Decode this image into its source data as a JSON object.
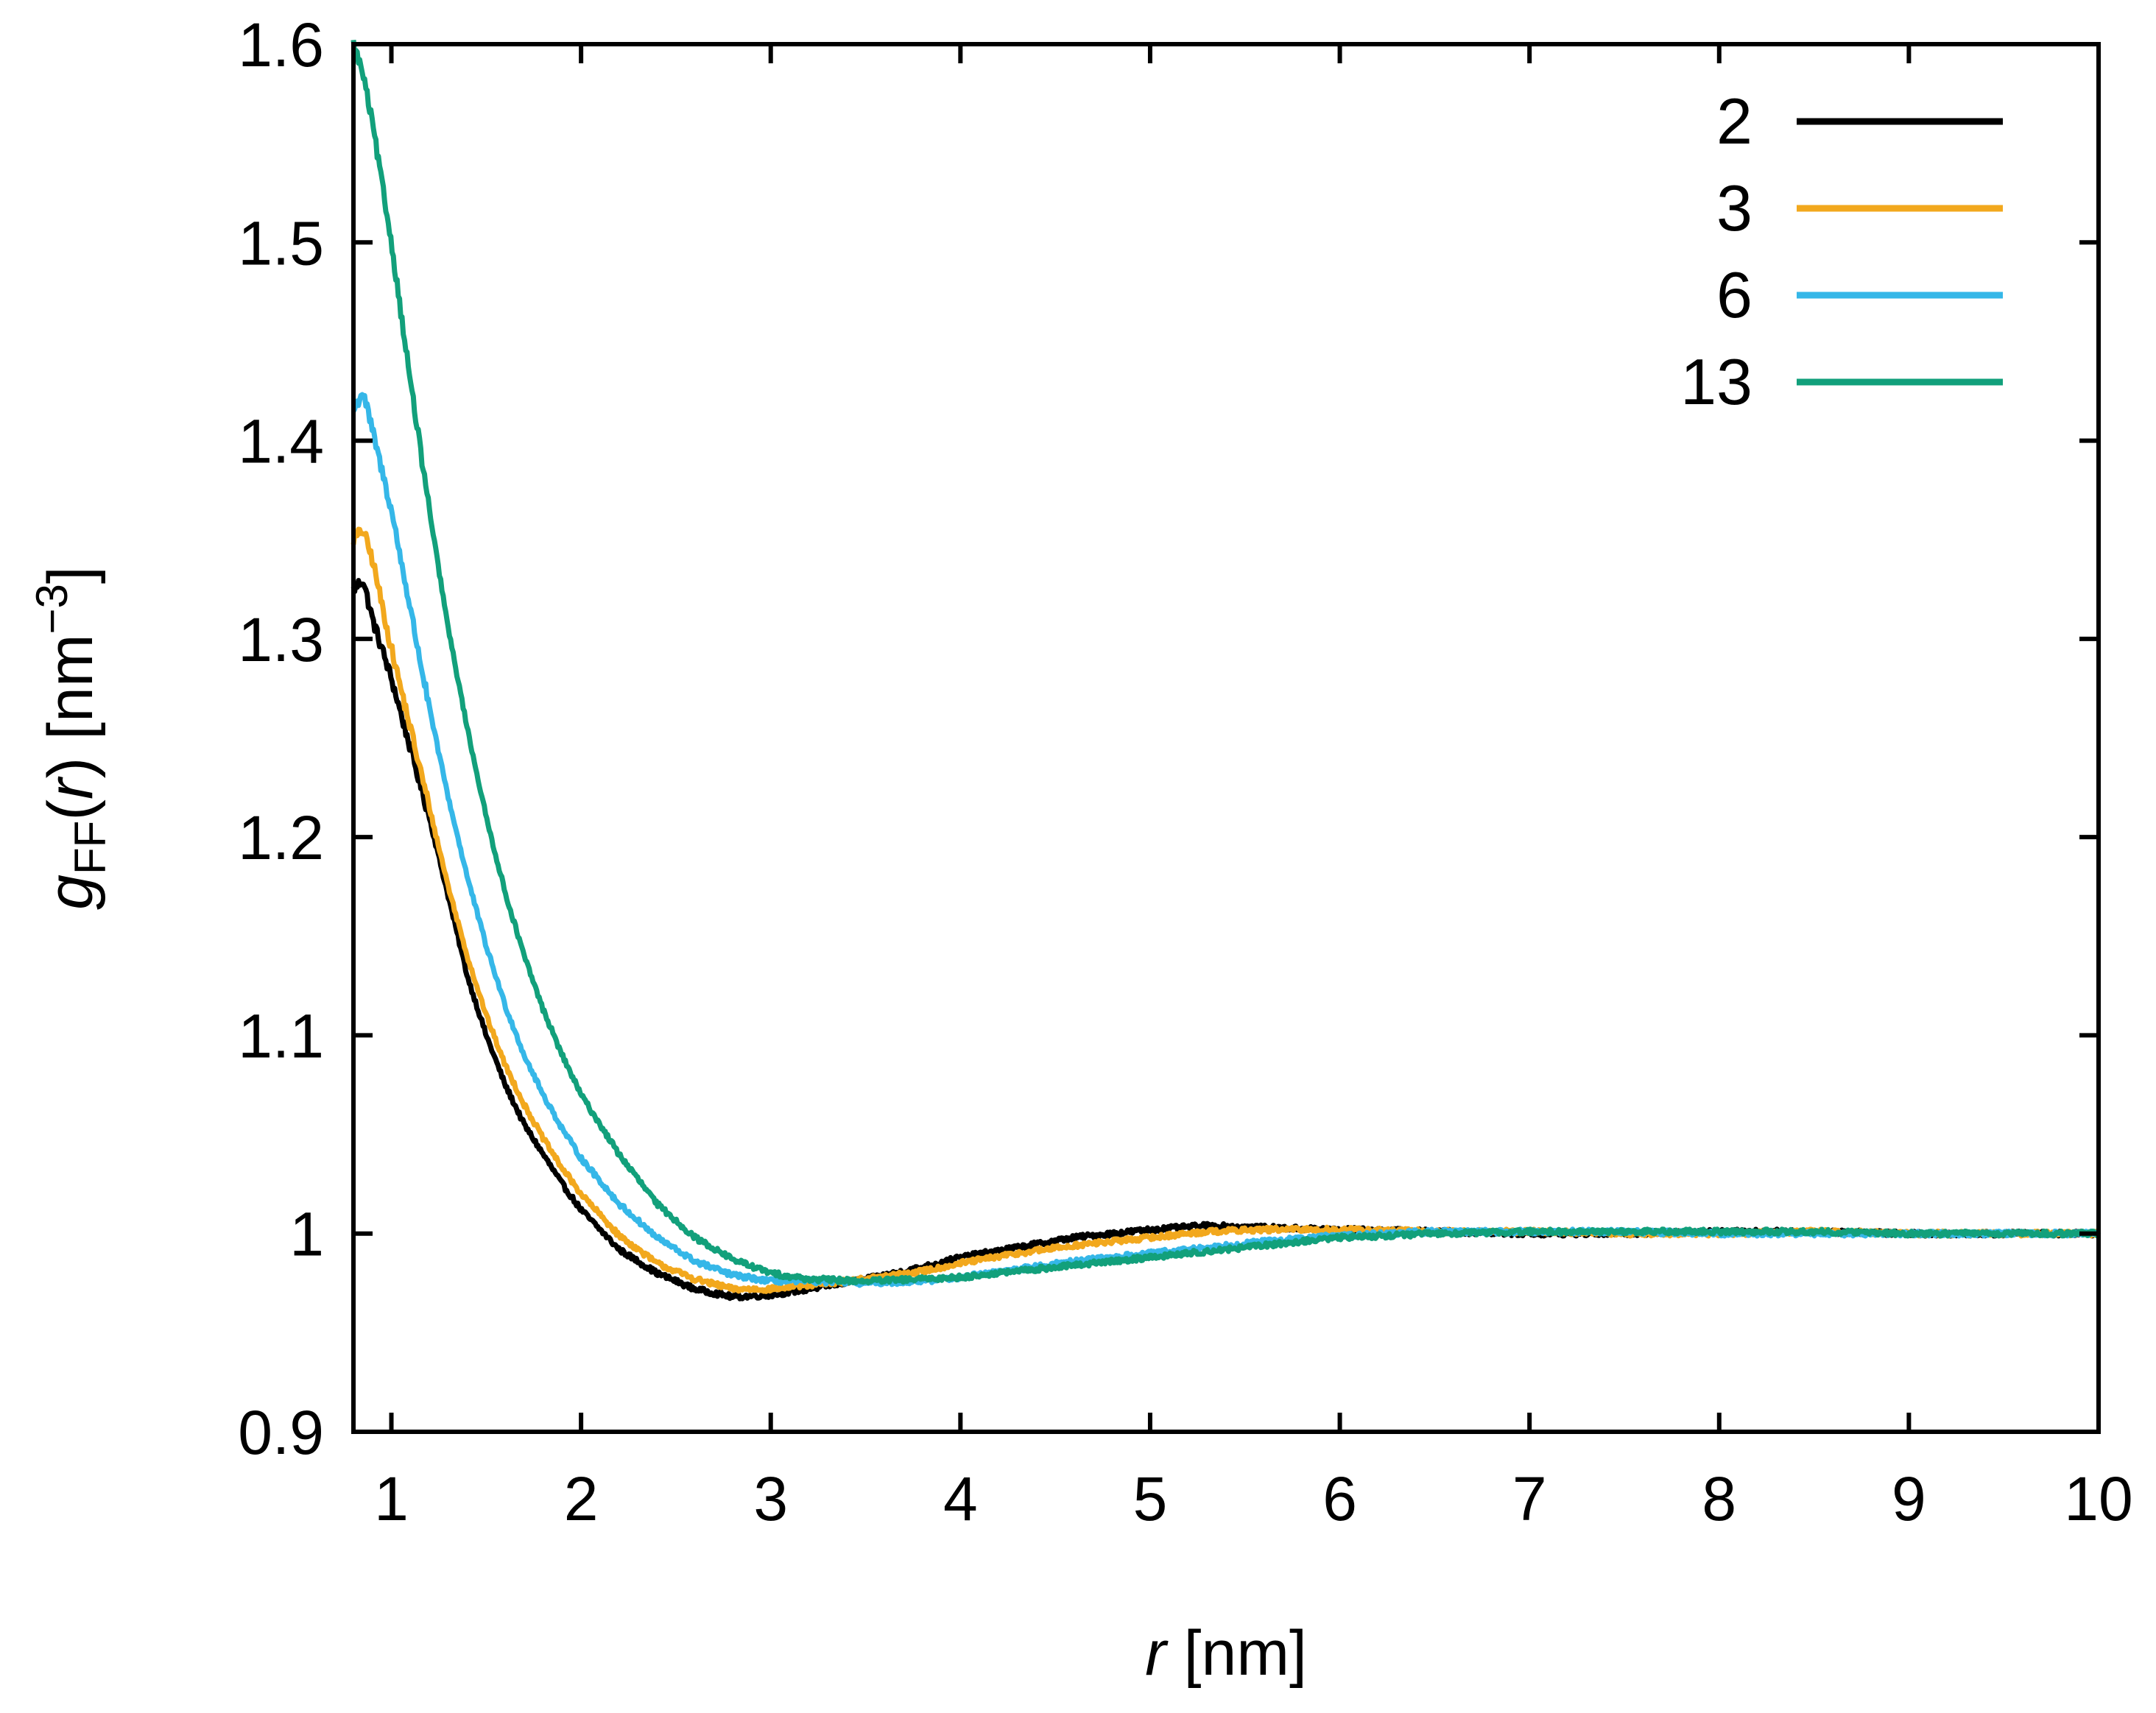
{
  "chart_data": {
    "type": "line",
    "title": "",
    "xlabel": {
      "italic": "r",
      "rest": " [nm]"
    },
    "ylabel": {
      "main": "g",
      "subscript": "FF",
      "open": "(",
      "var": "r",
      "close": ")",
      "unit_open": " [nm",
      "unit_sup": "−3",
      "unit_close": "]"
    },
    "xlim": [
      0.8,
      10
    ],
    "ylim": [
      0.9,
      1.6
    ],
    "x_ticks": [
      1,
      2,
      3,
      4,
      5,
      6,
      7,
      8,
      9,
      10
    ],
    "x_tick_labels": [
      "1",
      "2",
      "3",
      "4",
      "5",
      "6",
      "7",
      "8",
      "9",
      "10"
    ],
    "y_ticks": [
      0.9,
      1.0,
      1.1,
      1.2,
      1.3,
      1.4,
      1.5,
      1.6
    ],
    "y_tick_labels": [
      "0.9",
      "1",
      "1.1",
      "1.2",
      "1.3",
      "1.4",
      "1.5",
      "1.6"
    ],
    "grid": false,
    "legend_position": "top-right",
    "series": [
      {
        "name": "2",
        "color": "#000000",
        "x": [
          0.8,
          0.85,
          0.9,
          1.0,
          1.1,
          1.2,
          1.3,
          1.4,
          1.5,
          1.6,
          1.7,
          1.8,
          1.9,
          2.0,
          2.2,
          2.4,
          2.6,
          2.8,
          3.0,
          3.2,
          3.5,
          3.8,
          4.0,
          4.3,
          4.6,
          5.0,
          5.3,
          5.6,
          6.0,
          6.5,
          7.0,
          7.5,
          8.0,
          8.5,
          9.0,
          9.5,
          10.0
        ],
        "values": [
          1.325,
          1.33,
          1.31,
          1.28,
          1.245,
          1.21,
          1.17,
          1.13,
          1.1,
          1.075,
          1.055,
          1.04,
          1.025,
          1.012,
          0.992,
          0.98,
          0.972,
          0.968,
          0.969,
          0.972,
          0.977,
          0.983,
          0.988,
          0.993,
          0.998,
          1.002,
          1.004,
          1.003,
          1.002,
          1.001,
          1.0,
          1.0,
          1.001,
          1.001,
          1.0,
          1.0,
          1.0
        ]
      },
      {
        "name": "3",
        "color": "#f2a81d",
        "x": [
          0.8,
          0.85,
          0.9,
          1.0,
          1.1,
          1.2,
          1.3,
          1.4,
          1.5,
          1.6,
          1.7,
          1.8,
          1.9,
          2.0,
          2.2,
          2.4,
          2.6,
          2.8,
          3.0,
          3.2,
          3.5,
          3.8,
          4.0,
          4.3,
          4.6,
          5.0,
          5.3,
          5.6,
          6.0,
          6.5,
          7.0,
          7.5,
          8.0,
          8.5,
          9.0,
          9.5,
          10.0
        ],
        "values": [
          1.35,
          1.355,
          1.34,
          1.295,
          1.255,
          1.215,
          1.175,
          1.14,
          1.11,
          1.085,
          1.065,
          1.048,
          1.033,
          1.02,
          0.999,
          0.985,
          0.977,
          0.972,
          0.972,
          0.974,
          0.977,
          0.981,
          0.985,
          0.99,
          0.994,
          0.998,
          1.001,
          1.002,
          1.002,
          1.001,
          1.001,
          1.0,
          1.0,
          1.001,
          1.0,
          1.0,
          1.0
        ]
      },
      {
        "name": "6",
        "color": "#35b7e8",
        "x": [
          0.8,
          0.85,
          0.9,
          1.0,
          1.1,
          1.2,
          1.3,
          1.4,
          1.5,
          1.6,
          1.7,
          1.8,
          1.9,
          2.0,
          2.2,
          2.4,
          2.6,
          2.8,
          3.0,
          3.2,
          3.5,
          3.8,
          4.0,
          4.3,
          4.6,
          5.0,
          5.3,
          5.6,
          6.0,
          6.5,
          7.0,
          7.5,
          8.0,
          8.5,
          9.0,
          9.5,
          10.0
        ],
        "values": [
          1.415,
          1.425,
          1.405,
          1.365,
          1.315,
          1.265,
          1.22,
          1.18,
          1.145,
          1.115,
          1.09,
          1.07,
          1.053,
          1.038,
          1.015,
          0.998,
          0.986,
          0.979,
          0.976,
          0.976,
          0.975,
          0.976,
          0.978,
          0.982,
          0.986,
          0.99,
          0.993,
          0.996,
          0.999,
          1.001,
          1.001,
          1.001,
          1.0,
          1.0,
          1.0,
          1.0,
          1.0
        ]
      },
      {
        "name": "13",
        "color": "#12a07b",
        "x": [
          0.8,
          0.85,
          0.9,
          1.0,
          1.1,
          1.2,
          1.3,
          1.4,
          1.5,
          1.6,
          1.7,
          1.8,
          1.9,
          2.0,
          2.2,
          2.4,
          2.6,
          2.8,
          3.0,
          3.2,
          3.5,
          3.8,
          4.0,
          4.3,
          4.6,
          5.0,
          5.3,
          5.6,
          6.0,
          6.5,
          7.0,
          7.5,
          8.0,
          8.5,
          9.0,
          9.5,
          10.0
        ],
        "values": [
          1.6,
          1.585,
          1.56,
          1.5,
          1.43,
          1.365,
          1.305,
          1.255,
          1.21,
          1.172,
          1.14,
          1.113,
          1.09,
          1.07,
          1.04,
          1.015,
          0.998,
          0.987,
          0.98,
          0.977,
          0.976,
          0.977,
          0.978,
          0.981,
          0.984,
          0.988,
          0.991,
          0.994,
          0.998,
          1.0,
          1.001,
          1.001,
          1.001,
          1.001,
          1.0,
          1.0,
          1.0
        ]
      }
    ]
  }
}
